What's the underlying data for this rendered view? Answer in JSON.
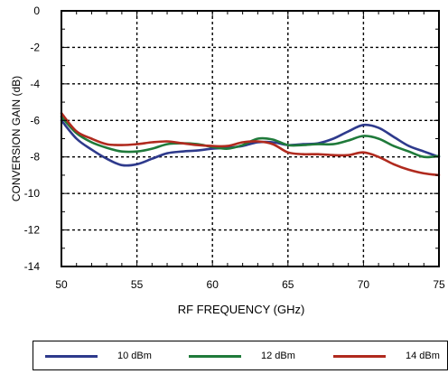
{
  "chart_data": {
    "type": "line",
    "xlabel": "RF FREQUENCY (GHz)",
    "ylabel": "CONVERSION GAIN (dB)",
    "xlim": [
      50,
      75
    ],
    "ylim": [
      -14,
      0
    ],
    "x_ticks": [
      "50",
      "55",
      "60",
      "65",
      "70",
      "75"
    ],
    "y_ticks": [
      "0",
      "-2",
      "-4",
      "-6",
      "-8",
      "-10",
      "-12",
      "-14"
    ],
    "grid": true,
    "legend_position": "bottom",
    "series": [
      {
        "name": "10 dBm",
        "color": "#2e3a8c",
        "x": [
          50,
          51,
          52,
          53,
          54,
          55,
          56,
          57,
          58,
          59,
          60,
          61,
          62,
          63,
          64,
          65,
          66,
          67,
          68,
          69,
          70,
          71,
          72,
          73,
          74,
          75
        ],
        "y": [
          -6.0,
          -7.0,
          -7.6,
          -8.1,
          -8.45,
          -8.4,
          -8.1,
          -7.8,
          -7.7,
          -7.65,
          -7.55,
          -7.5,
          -7.4,
          -7.2,
          -7.2,
          -7.35,
          -7.3,
          -7.25,
          -7.0,
          -6.6,
          -6.25,
          -6.4,
          -6.9,
          -7.4,
          -7.7,
          -8.0
        ]
      },
      {
        "name": "12 dBm",
        "color": "#1f7a3a",
        "x": [
          50,
          51,
          52,
          53,
          54,
          55,
          56,
          57,
          58,
          59,
          60,
          61,
          62,
          63,
          64,
          65,
          66,
          67,
          68,
          69,
          70,
          71,
          72,
          73,
          74,
          75
        ],
        "y": [
          -5.8,
          -6.7,
          -7.2,
          -7.5,
          -7.7,
          -7.7,
          -7.55,
          -7.3,
          -7.25,
          -7.3,
          -7.45,
          -7.55,
          -7.35,
          -7.0,
          -7.05,
          -7.35,
          -7.35,
          -7.3,
          -7.3,
          -7.1,
          -6.85,
          -7.0,
          -7.4,
          -7.7,
          -8.0,
          -7.95
        ]
      },
      {
        "name": "14 dBm",
        "color": "#b02a1e",
        "x": [
          50,
          51,
          52,
          53,
          54,
          55,
          56,
          57,
          58,
          59,
          60,
          61,
          62,
          63,
          64,
          65,
          66,
          67,
          68,
          69,
          70,
          71,
          72,
          73,
          74,
          75
        ],
        "y": [
          -5.6,
          -6.6,
          -7.0,
          -7.3,
          -7.35,
          -7.3,
          -7.2,
          -7.15,
          -7.25,
          -7.35,
          -7.4,
          -7.4,
          -7.2,
          -7.15,
          -7.3,
          -7.75,
          -7.85,
          -7.85,
          -7.9,
          -7.9,
          -7.75,
          -8.0,
          -8.4,
          -8.7,
          -8.9,
          -9.0
        ]
      }
    ]
  }
}
